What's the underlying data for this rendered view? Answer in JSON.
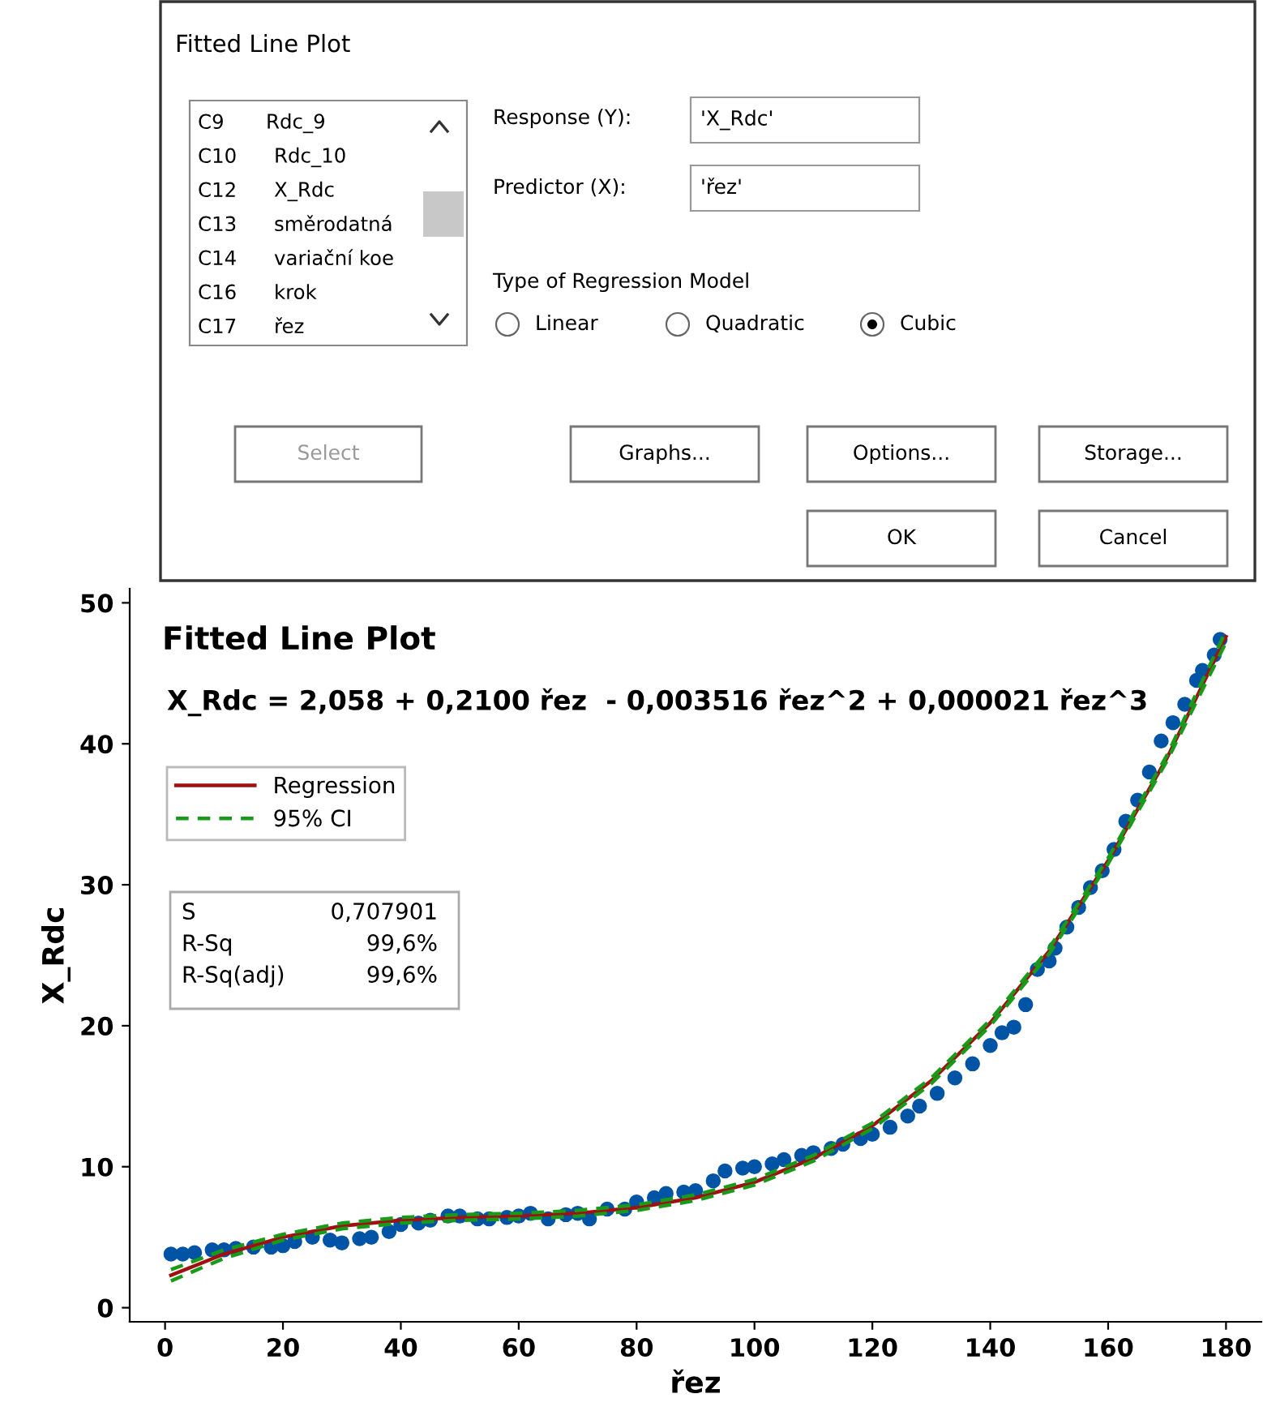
{
  "chart_data": [
    {
      "type": "other",
      "title": "Fitted Line Plot",
      "annotations": [
        "C9",
        "Rdc_9",
        "C10",
        "Rdc_10",
        "C12",
        "X_Rdc",
        "C13",
        "směrodatná",
        "C14",
        "variační koe",
        "C16",
        "krok",
        "C17",
        "řez",
        "Response (Y):",
        "'X_Rdc'",
        "Predictor (X):",
        "'řez'",
        "Type of Regression Model",
        "Linear",
        "Quadratic",
        "Cubic",
        "Select",
        "Graphs...",
        "Options...",
        "Storage...",
        "OK",
        "Cancel"
      ]
    },
    {
      "type": "scatter",
      "title": "Fitted Line Plot",
      "subtitle": "X_Rdc = 2,058 + 0,2100 řez  - 0,003516 řez^2 + 0,000021 řez^3",
      "xlabel": "řez",
      "ylabel": "X_Rdc",
      "xlim": [
        -6,
        186
      ],
      "xticks": [
        0,
        20,
        40,
        60,
        80,
        100,
        120,
        140,
        160,
        180
      ],
      "ylim": [
        -1,
        51
      ],
      "yticks": [
        0,
        10,
        20,
        30,
        40,
        50
      ],
      "legend": "top left",
      "annotations": [
        "S",
        "0,707901",
        "R-Sq",
        "99,6%",
        "R-Sq(adj)",
        "99,6%"
      ],
      "series": [
        {
          "type": "scatter",
          "marker": "circle",
          "color": "#0054a6",
          "x": [
            1,
            3,
            5,
            8,
            10,
            12,
            15,
            18,
            20,
            22,
            25,
            28,
            30,
            33,
            35,
            38,
            40,
            43,
            45,
            48,
            50,
            53,
            55,
            58,
            60,
            62,
            65,
            68,
            70,
            72,
            75,
            78,
            80,
            83,
            85,
            88,
            90,
            93,
            95,
            98,
            100,
            103,
            105,
            108,
            110,
            113,
            115,
            118,
            120,
            123,
            126,
            128,
            131,
            134,
            137,
            140,
            142,
            144,
            146,
            148,
            150,
            151,
            153,
            155,
            157,
            159,
            161,
            163,
            165,
            167,
            169,
            171,
            173,
            175,
            176,
            178,
            179
          ],
          "values": [
            3.8,
            3.8,
            3.9,
            4.1,
            4.1,
            4.2,
            4.3,
            4.3,
            4.4,
            4.7,
            5.0,
            4.8,
            4.6,
            4.9,
            5.0,
            5.4,
            5.9,
            6.0,
            6.2,
            6.5,
            6.5,
            6.3,
            6.3,
            6.4,
            6.5,
            6.7,
            6.3,
            6.6,
            6.7,
            6.3,
            7.0,
            7.0,
            7.5,
            7.8,
            8.1,
            8.2,
            8.3,
            9.0,
            9.7,
            9.9,
            10.0,
            10.2,
            10.5,
            10.8,
            11.0,
            11.3,
            11.6,
            12.0,
            12.3,
            12.8,
            13.6,
            14.3,
            15.2,
            16.3,
            17.3,
            18.6,
            19.5,
            19.9,
            21.5,
            24.0,
            24.6,
            25.5,
            27.0,
            28.4,
            29.8,
            31.0,
            32.5,
            34.5,
            36.0,
            38.0,
            40.2,
            41.5,
            42.8,
            44.5,
            45.2,
            46.3,
            47.4
          ]
        },
        {
          "type": "line",
          "marker": "none",
          "name": "Regression",
          "color": "#a01010",
          "line_style": "solid",
          "x": [
            1,
            10,
            20,
            30,
            40,
            50,
            60,
            70,
            80,
            90,
            100,
            110,
            120,
            130,
            140,
            150,
            160,
            170,
            180
          ],
          "values": [
            2.3,
            3.8,
            5.0,
            5.8,
            6.2,
            6.4,
            6.5,
            6.7,
            7.1,
            7.8,
            8.9,
            10.6,
            12.9,
            16.1,
            20.2,
            25.3,
            31.7,
            39.0,
            47.6
          ]
        },
        {
          "type": "line",
          "marker": "none",
          "name": "95% CI",
          "color": "#1a9a1a",
          "line_style": "dashed",
          "x": [
            1,
            10,
            20,
            30,
            40,
            50,
            60,
            70,
            80,
            90,
            100,
            110,
            120,
            130,
            140,
            150,
            160,
            170,
            180
          ],
          "values": [
            2.7,
            4.1,
            5.2,
            6.0,
            6.4,
            6.6,
            6.7,
            6.9,
            7.3,
            8.0,
            9.1,
            10.8,
            13.1,
            16.3,
            20.4,
            25.5,
            31.9,
            39.2,
            48.0
          ]
        },
        {
          "type": "line",
          "marker": "none",
          "color": "#1a9a1a",
          "line_style": "dashed",
          "x": [
            1,
            10,
            20,
            30,
            40,
            50,
            60,
            70,
            80,
            90,
            100,
            110,
            120,
            130,
            140,
            150,
            160,
            170,
            180
          ],
          "values": [
            1.9,
            3.5,
            4.8,
            5.6,
            6.0,
            6.2,
            6.3,
            6.5,
            6.9,
            7.6,
            8.7,
            10.4,
            12.7,
            15.9,
            20.0,
            25.1,
            31.5,
            38.8,
            47.2
          ]
        }
      ]
    }
  ]
}
